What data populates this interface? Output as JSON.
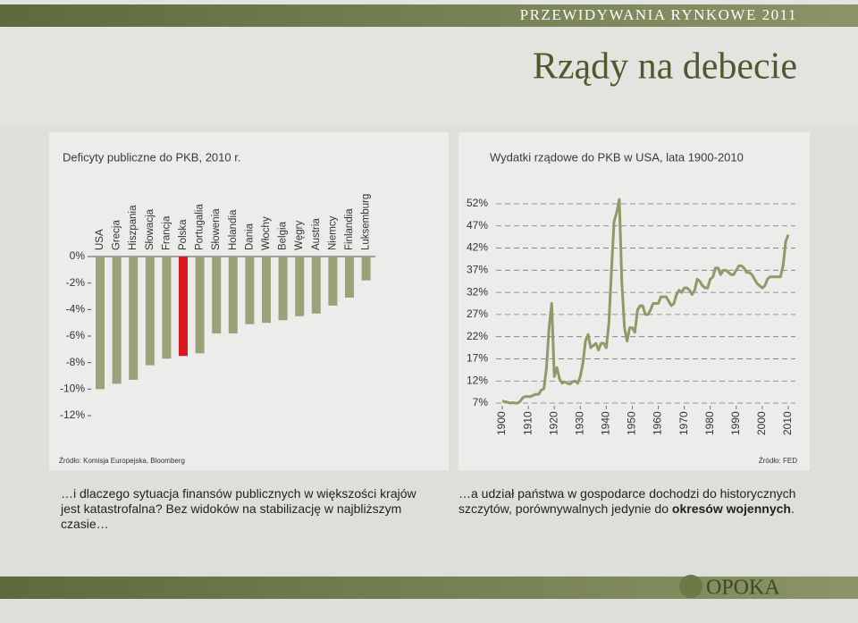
{
  "header": {
    "kicker": "PRZEWIDYWANIA RYNKOWE 2011",
    "title": "Rządy na debecie"
  },
  "chart_data": [
    {
      "type": "bar",
      "title": "Deficyty publiczne do PKB, 2010 r.",
      "categories": [
        "USA",
        "Grecja",
        "Hiszpania",
        "Słowacja",
        "Francja",
        "Polska",
        "Portugalia",
        "Słowenia",
        "Holandia",
        "Dania",
        "Włochy",
        "Belgia",
        "Węgry",
        "Austria",
        "Niemcy",
        "Finlandia",
        "Luksemburg"
      ],
      "values": [
        -10.0,
        -9.6,
        -9.3,
        -8.2,
        -7.7,
        -7.5,
        -7.3,
        -5.8,
        -5.8,
        -5.1,
        -5.0,
        -4.8,
        -4.5,
        -4.3,
        -3.7,
        -3.1,
        -1.8
      ],
      "colors": [
        "#9aa27a",
        "#9aa27a",
        "#9aa27a",
        "#9aa27a",
        "#9aa27a",
        "#d81920",
        "#9aa27a",
        "#9aa27a",
        "#9aa27a",
        "#9aa27a",
        "#9aa27a",
        "#9aa27a",
        "#9aa27a",
        "#9aa27a",
        "#9aa27a",
        "#9aa27a",
        "#9aa27a"
      ],
      "ylim": [
        -12,
        0
      ],
      "yticks": [
        {
          "value": 0,
          "label": "0%"
        },
        {
          "value": -2,
          "label": "-2%"
        },
        {
          "value": -4,
          "label": "-4%"
        },
        {
          "value": -6,
          "label": "-6%"
        },
        {
          "value": -8,
          "label": "-8%"
        },
        {
          "value": -10,
          "label": "-10%"
        },
        {
          "value": -12,
          "label": "-12%"
        }
      ],
      "grid": false,
      "source": "Źródło:  Komisja Europejska, Bloomberg"
    },
    {
      "type": "line",
      "title": "Wydatki rządowe do PKB w USA, lata 1900-2010",
      "x": [
        1900,
        1901,
        1902,
        1903,
        1904,
        1905,
        1906,
        1907,
        1908,
        1909,
        1910,
        1911,
        1912,
        1913,
        1914,
        1915,
        1916,
        1917,
        1918,
        1919,
        1920,
        1921,
        1922,
        1923,
        1924,
        1925,
        1926,
        1927,
        1928,
        1929,
        1930,
        1931,
        1932,
        1933,
        1934,
        1935,
        1936,
        1937,
        1938,
        1939,
        1940,
        1941,
        1942,
        1943,
        1944,
        1945,
        1946,
        1947,
        1948,
        1949,
        1950,
        1951,
        1952,
        1953,
        1954,
        1955,
        1956,
        1957,
        1958,
        1959,
        1960,
        1961,
        1962,
        1963,
        1964,
        1965,
        1966,
        1967,
        1968,
        1969,
        1970,
        1971,
        1972,
        1973,
        1974,
        1975,
        1976,
        1977,
        1978,
        1979,
        1980,
        1981,
        1982,
        1983,
        1984,
        1985,
        1986,
        1987,
        1988,
        1989,
        1990,
        1991,
        1992,
        1993,
        1994,
        1995,
        1996,
        1997,
        1998,
        1999,
        2000,
        2001,
        2002,
        2003,
        2004,
        2005,
        2006,
        2007,
        2008,
        2009,
        2010
      ],
      "values": [
        7.5,
        7.3,
        7.2,
        7.0,
        7.1,
        7.0,
        7.0,
        7.5,
        8.3,
        8.5,
        8.5,
        8.5,
        8.8,
        9.0,
        9.0,
        10.0,
        10.2,
        15,
        24,
        29.5,
        13,
        15,
        12.5,
        11.5,
        11.8,
        11.5,
        11.3,
        11.8,
        12,
        11.5,
        13,
        16,
        21,
        22.5,
        19.5,
        20,
        20.5,
        19,
        20.5,
        20.5,
        19.5,
        25,
        37,
        48,
        50,
        53,
        34,
        24,
        21,
        24,
        24,
        23,
        28,
        29,
        29,
        27,
        27,
        28,
        29.5,
        29.5,
        29.5,
        31,
        31,
        31,
        30,
        29,
        29.5,
        31.5,
        32.5,
        32,
        33,
        33,
        32.5,
        31.5,
        32.5,
        35,
        34.5,
        33.5,
        33,
        33,
        35,
        35.5,
        37.5,
        37.5,
        36,
        37,
        37,
        36.5,
        36,
        36,
        37,
        38,
        38,
        37.5,
        36.5,
        36.5,
        36,
        35,
        34,
        33.5,
        33,
        33.5,
        35,
        35.5,
        35.5,
        35.5,
        35.5,
        35.5,
        38,
        43.5,
        45
      ],
      "color": "#8e9a68",
      "xlim": [
        1900,
        2010
      ],
      "xticks": [
        1900,
        1910,
        1920,
        1930,
        1940,
        1950,
        1960,
        1970,
        1980,
        1990,
        2000,
        2010
      ],
      "ylim": [
        7,
        52
      ],
      "yticks": [
        {
          "value": 52,
          "label": "52%"
        },
        {
          "value": 47,
          "label": "47%"
        },
        {
          "value": 42,
          "label": "42%"
        },
        {
          "value": 37,
          "label": "37%"
        },
        {
          "value": 32,
          "label": "32%"
        },
        {
          "value": 27,
          "label": "27%"
        },
        {
          "value": 22,
          "label": "22%"
        },
        {
          "value": 17,
          "label": "17%"
        },
        {
          "value": 12,
          "label": "12%"
        },
        {
          "value": 7,
          "label": "7%"
        }
      ],
      "grid": true,
      "source": "Źródło:  FED"
    }
  ],
  "captions": [
    {
      "text": "…i dlaczego sytuacja finansów publicznych w większości krajów jest katastrofalna? Bez widoków na stabilizację w najbliższym czasie…"
    },
    {
      "text": "…a udział państwa w gospodarce dochodzi do historycznych szczytów, porównywalnych jedynie do ",
      "bold": "okresów wojennych",
      "end": "."
    }
  ],
  "logo": "OPOKA"
}
